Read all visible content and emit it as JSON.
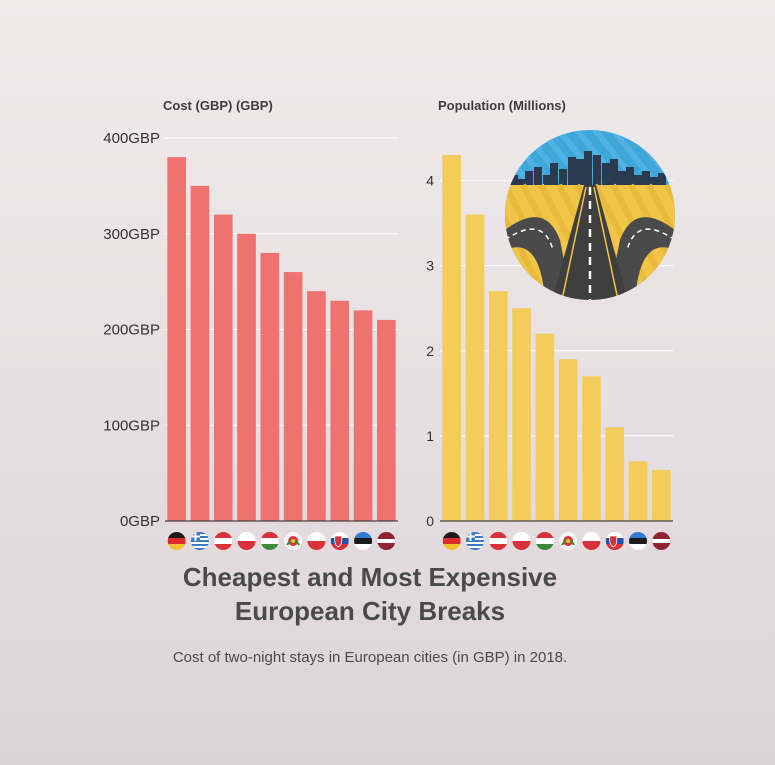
{
  "chart_data": [
    {
      "type": "bar",
      "title": "Cost (GBP) (GBP)",
      "categories": [
        "Germany",
        "Greece",
        "Austria",
        "Poland",
        "Hungary",
        "Portugal",
        "Poland",
        "Slovakia",
        "Estonia",
        "Latvia"
      ],
      "values": [
        380,
        350,
        320,
        300,
        280,
        260,
        240,
        230,
        220,
        210
      ],
      "ylim": [
        0,
        400
      ],
      "yticks": [
        0,
        100,
        200,
        300,
        400
      ],
      "ytick_labels": [
        "0GBP",
        "100GBP",
        "200GBP",
        "300GBP",
        "400GBP"
      ],
      "color": "#ee726f",
      "grid": true
    },
    {
      "type": "bar",
      "title": "Population (Millions)",
      "categories": [
        "Germany",
        "Greece",
        "Austria",
        "Poland",
        "Hungary",
        "Portugal",
        "Poland",
        "Slovakia",
        "Estonia",
        "Latvia"
      ],
      "values": [
        4.3,
        3.6,
        2.7,
        2.5,
        2.2,
        1.9,
        1.7,
        1.1,
        0.7,
        0.6
      ],
      "ylim": [
        0,
        4.5
      ],
      "yticks": [
        0,
        1,
        2,
        3,
        4
      ],
      "ytick_labels": [
        "0",
        "1",
        "2",
        "3",
        "4"
      ],
      "color": "#f3cc5c",
      "grid": true
    }
  ],
  "flags": [
    "de-flag-icon",
    "gr-flag-icon",
    "at-flag-icon",
    "pl-flag-icon",
    "hu-flag-icon",
    "pt-flag-icon",
    "pl-flag-icon",
    "sk-flag-icon",
    "ee-flag-icon",
    "lv-flag-icon"
  ],
  "illustration": "road-city-icon",
  "heading": {
    "line1": "Cheapest and Most Expensive",
    "line2": "European City Breaks"
  },
  "subtitle": "Cost of two-night stays in European cities (in GBP) in 2018."
}
